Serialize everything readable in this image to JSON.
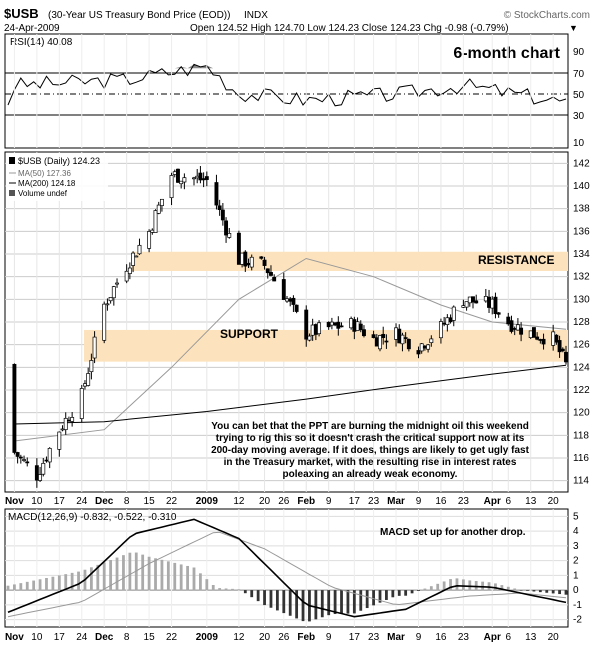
{
  "header": {
    "symbol": "$USB",
    "description": "(30-Year US Treasury Bond Price (EOD))",
    "exchange": "INDX",
    "watermark": "© StockCharts.com",
    "date": "24-Apr-2009",
    "ohlc_text": "Open 124.52  High 124.70  Low 124.23  Close 124.23  Chg -0.98 (-0.79%)",
    "chg_arrow": "▼"
  },
  "rsi_panel": {
    "label": "RSI(14) 40.08",
    "title": "6-month chart",
    "ticks": [
      "90",
      "70",
      "50",
      "30",
      "10"
    ]
  },
  "price_panel": {
    "legend": [
      {
        "text": "$USB (Daily) 124.23",
        "color": "#000000"
      },
      {
        "text": "MA(50) 127.36",
        "color": "#999999"
      },
      {
        "text": "MA(200) 124.18",
        "color": "#000000"
      },
      {
        "text": "Volume undef",
        "color": "#000000"
      }
    ],
    "y_ticks": [
      "142",
      "140",
      "138",
      "136",
      "134",
      "132",
      "130",
      "128",
      "126",
      "124",
      "122",
      "120",
      "118",
      "116",
      "114"
    ],
    "resistance_label": "RESISTANCE",
    "support_label": "SUPPORT",
    "annotation": [
      "You can bet that the PPT are burning the midnight oil this weekend",
      "trying to rig this so it doesn't crash the critical support now at its",
      "200-day moving average. If it does, things are likely to get ugly fast",
      "in the Treasury market, with the resulting rise in interest rates",
      "poleaxing an already weak economy."
    ]
  },
  "macd_panel": {
    "label": "MACD(12,26,9) -0.832, -0.522, -0.310",
    "annotation": "MACD set up for another drop.",
    "y_ticks": [
      "5",
      "4",
      "3",
      "2",
      "1",
      "0",
      "-1",
      "-2"
    ]
  },
  "x_axis": {
    "labels": [
      "Nov",
      "10",
      "17",
      "24",
      "Dec",
      "8",
      "15",
      "22",
      "2009",
      "12",
      "20",
      "26",
      "Feb",
      "9",
      "17",
      "23",
      "Mar",
      "9",
      "16",
      "23",
      "Apr",
      "6",
      "13",
      "20"
    ]
  },
  "colors": {
    "band": "#fde3bd",
    "rsi_fill": "#888888",
    "ma50": "#999999",
    "macd_line": "#000000",
    "signal_line": "#999999",
    "histogram": "#aaaaaa",
    "up_candle": "#ffffff",
    "down_candle": "#000000"
  },
  "chart_data": {
    "type": "candlestick",
    "title": "$USB (30-Year US Treasury Bond Price (EOD))",
    "x_range": [
      "2008-11-01",
      "2009-04-24"
    ],
    "ylim": [
      113,
      143
    ],
    "resistance_zone": [
      132.5,
      134.2
    ],
    "support_zone": [
      124.5,
      127.3
    ],
    "series": [
      {
        "name": "$USB (Daily)",
        "x": [
          "2008-11-03",
          "2008-11-10",
          "2008-11-17",
          "2008-11-24",
          "2008-12-01",
          "2008-12-08",
          "2008-12-15",
          "2008-12-22",
          "2009-01-02",
          "2009-01-12",
          "2009-01-20",
          "2009-01-26",
          "2009-02-02",
          "2009-02-09",
          "2009-02-17",
          "2009-02-23",
          "2009-03-02",
          "2009-03-09",
          "2009-03-16",
          "2009-03-23",
          "2009-04-01",
          "2009-04-06",
          "2009-04-13",
          "2009-04-20",
          "2009-04-24"
        ],
        "values": [
          116.5,
          114.5,
          118.5,
          121.5,
          129.5,
          133.0,
          136.0,
          141.0,
          140.5,
          133.5,
          133.0,
          130.5,
          127.0,
          127.5,
          127.8,
          126.5,
          127.0,
          125.8,
          127.5,
          130.0,
          129.5,
          128.0,
          127.0,
          126.5,
          124.23
        ]
      },
      {
        "name": "MA(50)",
        "x": [
          "2008-11-03",
          "2008-12-01",
          "2008-12-22",
          "2009-01-12",
          "2009-02-02",
          "2009-02-23",
          "2009-03-16",
          "2009-04-01",
          "2009-04-24"
        ],
        "values": [
          117.5,
          118.5,
          124.0,
          130.0,
          133.6,
          132.0,
          129.5,
          128.0,
          127.36
        ]
      },
      {
        "name": "MA(200)",
        "x": [
          "2008-11-03",
          "2008-12-01",
          "2009-01-02",
          "2009-02-02",
          "2009-03-02",
          "2009-04-01",
          "2009-04-24"
        ],
        "values": [
          119.0,
          119.2,
          120.1,
          121.2,
          122.3,
          123.4,
          124.18
        ]
      }
    ],
    "rsi": {
      "name": "RSI(14)",
      "ylim": [
        0,
        100
      ],
      "x": [
        "2008-11-03",
        "2008-12-08",
        "2009-01-02",
        "2009-01-12",
        "2009-02-02",
        "2009-03-02",
        "2009-03-23",
        "2009-04-24"
      ],
      "values": [
        55,
        60,
        72,
        48,
        42,
        47,
        55,
        40.08
      ]
    },
    "macd": {
      "name": "MACD(12,26,9)",
      "ylim": [
        -2.5,
        5.5
      ],
      "macd": -0.832,
      "signal": -0.522,
      "histogram": -0.31
    },
    "x_ticks": [
      "Nov",
      "10",
      "17",
      "24",
      "Dec",
      "8",
      "15",
      "22",
      "2009",
      "12",
      "20",
      "26",
      "Feb",
      "9",
      "17",
      "23",
      "Mar",
      "9",
      "16",
      "23",
      "Apr",
      "6",
      "13",
      "20"
    ]
  }
}
